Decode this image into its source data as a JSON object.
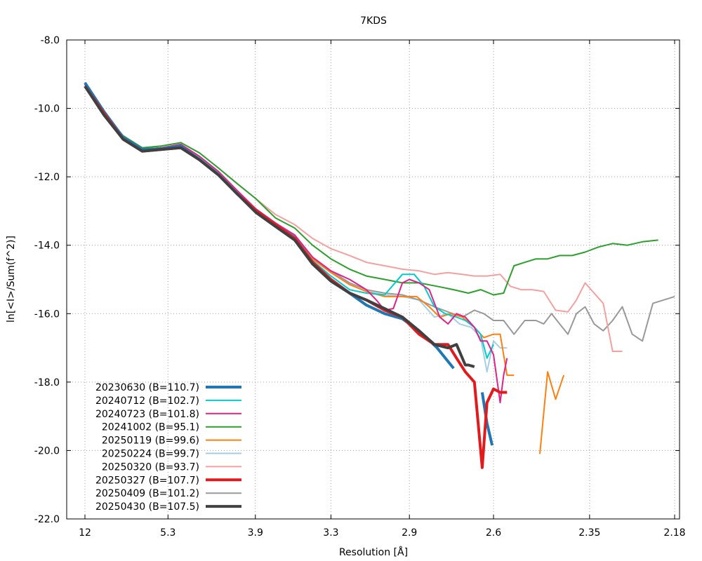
{
  "chart_data": {
    "type": "line",
    "title": "7KDS",
    "xlabel": "Resolution [Å]",
    "ylabel": "ln[<I>/Sum(f^2)]",
    "x_scale": "inverse-square",
    "xlim": [
      12,
      2.17
    ],
    "ylim": [
      -22,
      -8
    ],
    "x_ticks": [
      {
        "value": 12,
        "label": "12"
      },
      {
        "value": 5.3,
        "label": "5.3"
      },
      {
        "value": 3.9,
        "label": "3.9"
      },
      {
        "value": 3.3,
        "label": "3.3"
      },
      {
        "value": 2.9,
        "label": "2.9"
      },
      {
        "value": 2.6,
        "label": "2.6"
      },
      {
        "value": 2.35,
        "label": "2.35"
      },
      {
        "value": 2.18,
        "label": "2.18"
      }
    ],
    "y_ticks": [
      {
        "value": -8,
        "label": "-8.0"
      },
      {
        "value": -10,
        "label": "-10.0"
      },
      {
        "value": -12,
        "label": "-12.0"
      },
      {
        "value": -14,
        "label": "-14.0"
      },
      {
        "value": -16,
        "label": "-16.0"
      },
      {
        "value": -18,
        "label": "-18.0"
      },
      {
        "value": -20,
        "label": "-20.0"
      },
      {
        "value": -22,
        "label": "-22.0"
      }
    ],
    "grid": true,
    "legend_position": "bottom-left",
    "series": [
      {
        "name": "20230630 (B=110.7)",
        "color": "#1f77b4",
        "width": 4,
        "x": [
          12,
          8.59,
          7.05,
          6.12,
          5.48,
          5.0,
          4.64,
          4.34,
          4.1,
          3.89,
          3.71,
          3.55,
          3.42,
          3.3,
          3.19,
          3.1,
          3.01,
          2.93,
          2.86,
          2.79,
          2.73,
          2.68,
          2.635,
          2.62,
          2.604
        ],
        "y": [
          -9.25,
          -10.1,
          -10.85,
          -11.2,
          -11.18,
          -11.1,
          -11.5,
          -11.95,
          -12.5,
          -13.0,
          -13.4,
          -13.8,
          -14.5,
          -15.0,
          -15.4,
          -15.75,
          -16.0,
          -16.15,
          -16.5,
          -17.0,
          -17.6,
          null,
          -18.3,
          -19.2,
          -19.85
        ],
        "note": "bold blue"
      },
      {
        "name": "20240712 (B=102.7)",
        "color": "#00cccc",
        "width": 2,
        "x": [
          12,
          8.59,
          7.05,
          6.12,
          5.48,
          5.0,
          4.64,
          4.34,
          4.1,
          3.89,
          3.71,
          3.55,
          3.42,
          3.3,
          3.19,
          3.1,
          3.01,
          2.93,
          2.88,
          2.84,
          2.8,
          2.76,
          2.72,
          2.69,
          2.66,
          2.64,
          2.62,
          2.6
        ],
        "y": [
          -9.3,
          -10.15,
          -10.85,
          -11.2,
          -11.15,
          -11.1,
          -11.45,
          -11.9,
          -12.45,
          -12.95,
          -13.35,
          -13.75,
          -14.45,
          -14.9,
          -15.3,
          -15.4,
          -15.45,
          -14.85,
          -14.85,
          -15.2,
          -15.8,
          -16.0,
          -16.1,
          -16.2,
          -16.4,
          -16.6,
          -17.3,
          -16.9
        ]
      },
      {
        "name": "20240723 (B=101.8)",
        "color": "#e0218a",
        "width": 2,
        "x": [
          12,
          8.59,
          7.05,
          6.12,
          5.48,
          5.0,
          4.64,
          4.34,
          4.1,
          3.89,
          3.71,
          3.55,
          3.42,
          3.3,
          3.19,
          3.1,
          3.05,
          3.01,
          2.97,
          2.93,
          2.9,
          2.86,
          2.82,
          2.78,
          2.75,
          2.72,
          2.69,
          2.66,
          2.64,
          2.62,
          2.6,
          2.58,
          2.57,
          2.56
        ],
        "y": [
          -9.3,
          -10.15,
          -10.85,
          -11.2,
          -11.15,
          -11.05,
          -11.4,
          -11.85,
          -12.4,
          -12.95,
          -13.35,
          -13.7,
          -14.35,
          -14.75,
          -15.0,
          -15.3,
          -15.6,
          -15.9,
          -15.85,
          -15.1,
          -15.0,
          -15.1,
          -15.3,
          -16.1,
          -16.3,
          -16.0,
          -16.1,
          -16.4,
          -16.8,
          -16.8,
          -17.2,
          -18.6,
          -17.8,
          -17.3
        ]
      },
      {
        "name": "20241002 (B=95.1)",
        "color": "#2ca02c",
        "width": 2,
        "x": [
          12,
          8.59,
          7.05,
          6.12,
          5.48,
          5.0,
          4.64,
          4.34,
          4.1,
          3.89,
          3.71,
          3.55,
          3.42,
          3.3,
          3.19,
          3.1,
          3.01,
          2.93,
          2.86,
          2.79,
          2.73,
          2.68,
          2.64,
          2.6,
          2.57,
          2.54,
          2.51,
          2.48,
          2.45,
          2.42,
          2.39,
          2.36,
          2.33,
          2.3,
          2.27,
          2.24,
          2.21
        ],
        "y": [
          -9.3,
          -10.15,
          -10.8,
          -11.15,
          -11.1,
          -11.0,
          -11.3,
          -11.75,
          -12.2,
          -12.65,
          -13.2,
          -13.5,
          -14.0,
          -14.4,
          -14.7,
          -14.9,
          -15.0,
          -15.1,
          -15.1,
          -15.2,
          -15.3,
          -15.4,
          -15.3,
          -15.45,
          -15.4,
          -14.6,
          -14.5,
          -14.4,
          -14.4,
          -14.3,
          -14.3,
          -14.2,
          -14.05,
          -13.95,
          -14.0,
          -13.9,
          -13.85
        ]
      },
      {
        "name": "20250119 (B=99.6)",
        "color": "#ff7f0e",
        "width": 2,
        "x": [
          12,
          8.59,
          7.05,
          6.12,
          5.48,
          5.0,
          4.64,
          4.34,
          4.1,
          3.89,
          3.71,
          3.55,
          3.42,
          3.3,
          3.19,
          3.1,
          3.01,
          2.93,
          2.87,
          2.82,
          2.78,
          2.74,
          2.7,
          2.66,
          2.63,
          2.6,
          2.58,
          2.56,
          2.54,
          2.52,
          2.5,
          null,
          2.47,
          2.45,
          2.43,
          2.41
        ],
        "y": [
          -9.3,
          -10.15,
          -10.85,
          -11.2,
          -11.15,
          -11.1,
          -11.45,
          -11.9,
          -12.45,
          -12.95,
          -13.35,
          -13.75,
          -14.4,
          -14.8,
          -15.15,
          -15.35,
          -15.5,
          -15.5,
          -15.5,
          -15.8,
          -16.1,
          -16.0,
          -16.1,
          -16.4,
          -16.7,
          -16.6,
          -16.6,
          -17.8,
          -17.8,
          null,
          null,
          null,
          -20.1,
          -17.7,
          -18.5,
          -17.8
        ]
      },
      {
        "name": "20250224 (B=99.7)",
        "color": "#a6cee3",
        "width": 2,
        "x": [
          12,
          8.59,
          7.05,
          6.12,
          5.48,
          5.0,
          4.64,
          4.34,
          4.1,
          3.89,
          3.71,
          3.55,
          3.42,
          3.3,
          3.19,
          3.1,
          3.01,
          2.93,
          2.86,
          2.8,
          2.75,
          2.71,
          2.67,
          2.64,
          2.62,
          2.6,
          2.58,
          2.56
        ],
        "y": [
          -9.3,
          -10.15,
          -10.85,
          -11.2,
          -11.15,
          -11.1,
          -11.45,
          -11.9,
          -12.45,
          -12.95,
          -13.35,
          -13.75,
          -14.4,
          -14.8,
          -15.15,
          -15.35,
          -15.45,
          -15.5,
          -15.6,
          -16.1,
          -16.0,
          -16.3,
          -16.4,
          -16.7,
          -17.7,
          -16.8,
          -17.0,
          -17.0
        ]
      },
      {
        "name": "20250320 (B=93.7)",
        "color": "#f4a0a0",
        "width": 2,
        "x": [
          12,
          8.59,
          7.05,
          6.12,
          5.48,
          5.0,
          4.64,
          4.34,
          4.1,
          3.89,
          3.71,
          3.55,
          3.42,
          3.3,
          3.19,
          3.1,
          3.01,
          2.93,
          2.86,
          2.8,
          2.75,
          2.7,
          2.66,
          2.62,
          2.58,
          2.55,
          2.52,
          2.49,
          2.46,
          2.43,
          2.4,
          2.38,
          2.36,
          2.34,
          2.32,
          2.3,
          2.28
        ],
        "y": [
          -9.3,
          -10.15,
          -10.8,
          -11.15,
          -11.1,
          -11.0,
          -11.3,
          -11.75,
          -12.2,
          -12.65,
          -13.1,
          -13.4,
          -13.8,
          -14.1,
          -14.3,
          -14.5,
          -14.6,
          -14.7,
          -14.75,
          -14.85,
          -14.8,
          -14.85,
          -14.9,
          -14.9,
          -14.85,
          -15.2,
          -15.3,
          -15.3,
          -15.35,
          -15.9,
          -15.95,
          -15.6,
          -15.1,
          -15.4,
          -15.7,
          -17.1,
          -17.1
        ]
      },
      {
        "name": "20250327 (B=107.7)",
        "color": "#e31a1c",
        "width": 4,
        "x": [
          12,
          8.59,
          7.05,
          6.12,
          5.48,
          5.0,
          4.64,
          4.34,
          4.1,
          3.89,
          3.71,
          3.55,
          3.42,
          3.3,
          3.19,
          3.1,
          3.01,
          2.93,
          2.86,
          2.8,
          2.75,
          2.72,
          2.69,
          2.66,
          2.635,
          2.62,
          2.6,
          2.58,
          2.56
        ],
        "y": [
          -9.35,
          -10.15,
          -10.9,
          -11.25,
          -11.2,
          -11.15,
          -11.5,
          -11.95,
          -12.5,
          -13.0,
          -13.4,
          -13.8,
          -14.5,
          -15.0,
          -15.4,
          -15.6,
          -15.9,
          -16.1,
          -16.6,
          -16.9,
          -16.9,
          -17.3,
          -17.7,
          -18.0,
          -20.5,
          -18.6,
          -18.2,
          -18.3,
          -18.3
        ]
      },
      {
        "name": "20250409 (B=101.2)",
        "color": "#999999",
        "width": 2,
        "x": [
          12,
          8.59,
          7.05,
          6.12,
          5.48,
          5.0,
          4.64,
          4.34,
          4.1,
          3.89,
          3.71,
          3.55,
          3.42,
          3.3,
          3.19,
          3.1,
          3.01,
          2.93,
          2.86,
          2.8,
          2.75,
          2.7,
          2.66,
          2.63,
          2.6,
          2.57,
          2.54,
          2.51,
          2.48,
          2.46,
          2.44,
          2.42,
          2.4,
          2.38,
          2.36,
          2.34,
          2.32,
          2.3,
          2.28,
          2.26,
          2.24,
          2.22,
          2.2,
          2.18
        ],
        "y": [
          -9.3,
          -10.15,
          -10.85,
          -11.2,
          -11.15,
          -11.1,
          -11.45,
          -11.9,
          -12.45,
          -12.95,
          -13.35,
          -13.75,
          -14.35,
          -14.75,
          -15.1,
          -15.3,
          -15.4,
          -15.45,
          -15.6,
          -15.8,
          -15.95,
          -16.1,
          -15.9,
          -16.0,
          -16.2,
          -16.2,
          -16.6,
          -16.2,
          -16.2,
          -16.3,
          -16.0,
          -16.3,
          -16.6,
          -16.0,
          -15.8,
          -16.3,
          -16.5,
          -16.2,
          -15.8,
          -16.6,
          -16.8,
          -15.7,
          -15.6,
          -15.5
        ]
      },
      {
        "name": "20250430 (B=107.5)",
        "color": "#404040",
        "width": 4,
        "x": [
          12,
          8.59,
          7.05,
          6.12,
          5.48,
          5.0,
          4.64,
          4.34,
          4.1,
          3.89,
          3.71,
          3.55,
          3.42,
          3.3,
          3.19,
          3.1,
          3.01,
          2.93,
          2.86,
          2.8,
          2.75,
          2.72,
          2.69,
          2.68,
          2.66
        ],
        "y": [
          -9.35,
          -10.2,
          -10.9,
          -11.25,
          -11.2,
          -11.15,
          -11.5,
          -11.95,
          -12.5,
          -13.05,
          -13.45,
          -13.85,
          -14.55,
          -15.05,
          -15.4,
          -15.6,
          -15.85,
          -16.1,
          -16.5,
          -16.9,
          -17.0,
          -16.9,
          -17.5,
          -17.5,
          -17.55
        ]
      }
    ]
  }
}
